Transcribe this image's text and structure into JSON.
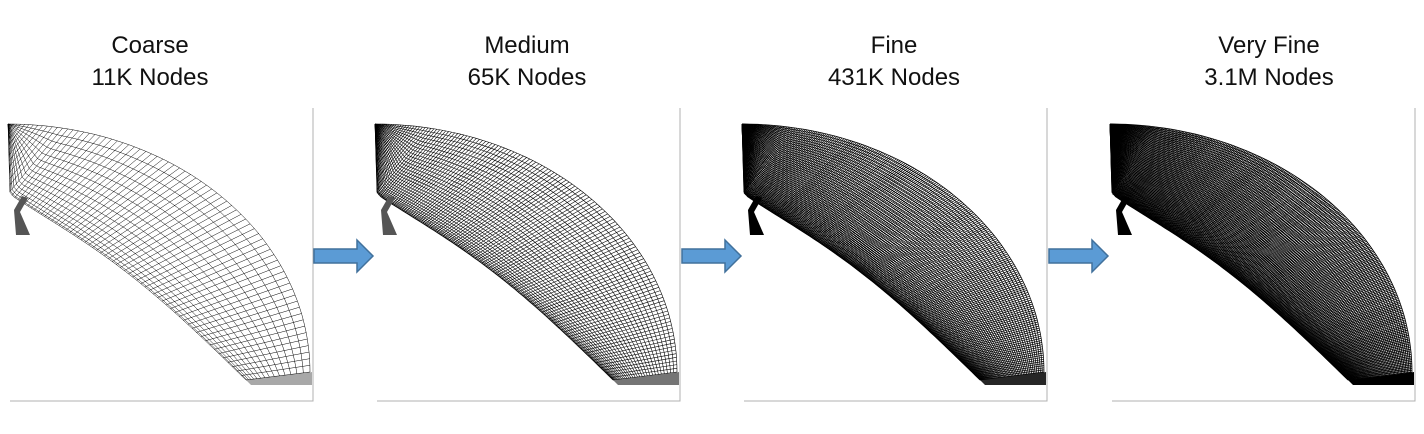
{
  "levels": [
    {
      "name": "Coarse",
      "nodes": "11K Nodes",
      "mesh_density": 0.12
    },
    {
      "name": "Medium",
      "nodes": "65K Nodes",
      "mesh_density": 0.38
    },
    {
      "name": "Fine",
      "nodes": "431K Nodes",
      "mesh_density": 0.8
    },
    {
      "name": "Very Fine",
      "nodes": "3.1M Nodes",
      "mesh_density": 1.0
    }
  ],
  "colors": {
    "arrow_fill": "#5b9bd5",
    "arrow_stroke": "#41719c",
    "mesh": "#000000",
    "frame": "#b0b0b0"
  }
}
